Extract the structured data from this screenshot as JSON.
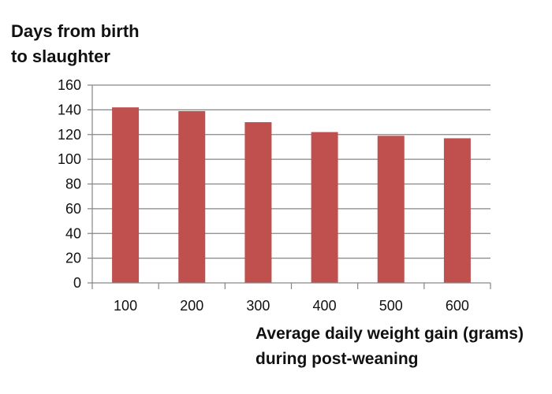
{
  "chart_data": {
    "type": "bar",
    "ylabel_lines": [
      "Days from birth",
      "to slaughter"
    ],
    "xlabel_lines": [
      "Average daily weight gain (grams)",
      "during post-weaning"
    ],
    "categories": [
      "100",
      "200",
      "300",
      "400",
      "500",
      "600"
    ],
    "values": [
      142,
      139,
      130,
      122,
      119,
      117
    ],
    "ylim": [
      0,
      160
    ],
    "yticks": [
      "0",
      "20",
      "40",
      "60",
      "80",
      "100",
      "120",
      "140",
      "160"
    ],
    "grid": true,
    "bar_color": "#C0504D",
    "grid_color": "#868686"
  }
}
